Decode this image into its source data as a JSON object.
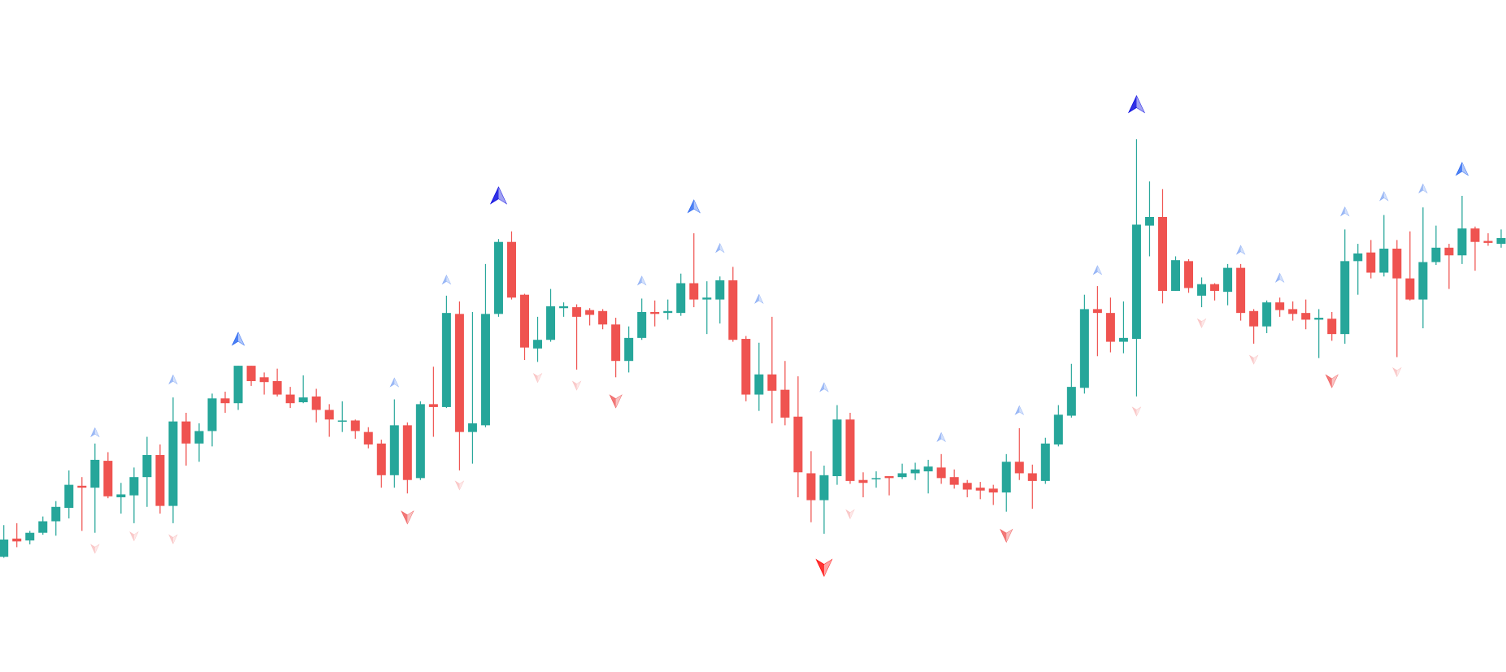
{
  "chart_data": {
    "type": "candlestick",
    "ylim": [
      0,
      700
    ],
    "up_color": "#26a69a",
    "down_color": "#ef5350",
    "open": [
      120,
      139,
      137,
      145,
      157,
      171,
      194,
      192,
      220,
      182,
      184,
      203,
      226,
      173,
      261,
      238,
      251,
      285,
      280,
      319,
      307,
      303,
      289,
      281,
      287,
      273,
      261,
      262,
      250,
      238,
      205,
      257,
      202,
      279,
      276,
      373,
      250,
      257,
      373,
      448,
      393,
      337,
      346,
      379,
      380,
      377,
      376,
      362,
      324,
      348,
      375,
      374,
      374,
      405,
      388,
      388,
      408,
      347,
      289,
      310,
      294,
      266,
      207,
      179,
      204,
      263,
      200,
      201,
      204,
      203,
      207,
      209,
      213,
      203,
      197,
      192,
      191,
      187,
      219,
      207,
      199,
      237,
      267,
      296,
      378,
      374,
      344,
      347,
      465,
      474,
      397,
      428,
      392,
      404,
      396,
      421,
      376,
      360,
      385,
      378,
      374,
      367,
      368,
      352,
      428,
      437,
      416,
      441,
      410,
      388,
      427,
      442,
      434,
      462,
      449,
      446
    ],
    "high": [
      153,
      155,
      147,
      162,
      178,
      210,
      203,
      238,
      229,
      197,
      213,
      245,
      237,
      286,
      270,
      259,
      290,
      292,
      319,
      319,
      312,
      316,
      297,
      309,
      295,
      279,
      282,
      263,
      255,
      242,
      284,
      260,
      282,
      318,
      392,
      386,
      375,
      425,
      451,
      459,
      394,
      370,
      399,
      385,
      383,
      379,
      378,
      369,
      360,
      389,
      387,
      388,
      415,
      457,
      407,
      412,
      422,
      350,
      343,
      370,
      324,
      308,
      230,
      215,
      278,
      270,
      208,
      209,
      204,
      217,
      218,
      221,
      227,
      211,
      200,
      198,
      195,
      227,
      254,
      216,
      244,
      278,
      321,
      393,
      402,
      390,
      386,
      555,
      511,
      503,
      433,
      430,
      411,
      405,
      425,
      425,
      378,
      387,
      390,
      386,
      388,
      378,
      375,
      461,
      446,
      450,
      476,
      450,
      459,
      484,
      465,
      446,
      496,
      464,
      457,
      461
    ],
    "low": [
      119,
      130,
      133,
      143,
      142,
      160,
      147,
      145,
      181,
      165,
      155,
      172,
      165,
      155,
      215,
      219,
      235,
      270,
      273,
      298,
      289,
      287,
      275,
      280,
      260,
      245,
      250,
      243,
      233,
      192,
      192,
      186,
      200,
      245,
      275,
      210,
      217,
      255,
      370,
      388,
      325,
      323,
      344,
      370,
      315,
      361,
      357,
      307,
      312,
      346,
      360,
      367,
      371,
      380,
      352,
      363,
      344,
      282,
      272,
      259,
      257,
      182,
      156,
      144,
      195,
      196,
      182,
      192,
      184,
      201,
      200,
      186,
      196,
      191,
      182,
      180,
      174,
      167,
      200,
      170,
      196,
      235,
      265,
      290,
      329,
      333,
      332,
      287,
      433,
      384,
      397,
      395,
      380,
      387,
      382,
      366,
      342,
      353,
      370,
      366,
      357,
      327,
      345,
      342,
      393,
      410,
      412,
      328,
      387,
      358,
      424,
      399,
      425,
      418,
      444,
      442
    ],
    "close": [
      138,
      136,
      145,
      157,
      172,
      195,
      192,
      221,
      183,
      185,
      203,
      226,
      173,
      261,
      238,
      251,
      285,
      280,
      319,
      303,
      302,
      289,
      280,
      286,
      273,
      263,
      262,
      251,
      237,
      205,
      257,
      200,
      279,
      276,
      374,
      250,
      259,
      373,
      448,
      390,
      338,
      346,
      381,
      381,
      370,
      372,
      362,
      324,
      348,
      375,
      373,
      376,
      405,
      388,
      390,
      408,
      346,
      289,
      310,
      293,
      265,
      208,
      179,
      205,
      263,
      199,
      197,
      202,
      202,
      207,
      211,
      214,
      202,
      195,
      190,
      189,
      187,
      219,
      207,
      199,
      238,
      268,
      297,
      378,
      374,
      344,
      348,
      466,
      474,
      397,
      429,
      400,
      404,
      397,
      421,
      374,
      360,
      385,
      377,
      373,
      367,
      369,
      352,
      428,
      436,
      416,
      441,
      410,
      388,
      427,
      442,
      434,
      462,
      448,
      447,
      452
    ],
    "markers": {
      "index": [
        7,
        13,
        18,
        30,
        34,
        38,
        49,
        53,
        55,
        58,
        63,
        72,
        78,
        84,
        87,
        95,
        98,
        103,
        106,
        109,
        112,
        7,
        10,
        13,
        31,
        35,
        41,
        44,
        47,
        63,
        65,
        77,
        87,
        92,
        96,
        102,
        107
      ],
      "values": [
        249,
        304,
        346,
        301,
        408,
        495,
        407,
        484,
        441,
        388,
        296,
        244,
        272,
        418,
        590,
        439,
        410,
        479,
        495,
        503,
        523,
        129,
        142,
        139,
        162,
        195,
        307,
        299,
        283,
        110,
        165,
        143,
        272,
        364,
        326,
        304,
        313
      ],
      "directions": [
        "up",
        "up",
        "up",
        "up",
        "up",
        "up",
        "up",
        "up",
        "up",
        "up",
        "up",
        "up",
        "up",
        "up",
        "up",
        "up",
        "up",
        "up",
        "up",
        "up",
        "up",
        "down",
        "down",
        "down",
        "down",
        "down",
        "down",
        "down",
        "down",
        "down",
        "down",
        "down",
        "down",
        "down",
        "down",
        "down",
        "down"
      ],
      "levels": [
        "weak",
        "weak",
        "medium",
        "weak",
        "weak",
        "strong",
        "weak",
        "medium",
        "weak",
        "weak",
        "weak",
        "weak",
        "weak",
        "weak",
        "strong",
        "weak",
        "weak",
        "weak",
        "weak",
        "weak",
        "medium",
        "weak",
        "weak",
        "weak",
        "medium",
        "weak",
        "weak",
        "weak",
        "medium",
        "strong",
        "weak",
        "medium",
        "weak",
        "weak",
        "weak",
        "medium",
        "weak"
      ]
    },
    "marker_colors": {
      "up": {
        "strong": "#0c0ce0",
        "medium": "#2f6bf2",
        "weak": "#8fb0f5"
      },
      "down": {
        "strong": "#ff1010",
        "medium": "#f06262",
        "weak": "#f9c3c3"
      }
    }
  }
}
